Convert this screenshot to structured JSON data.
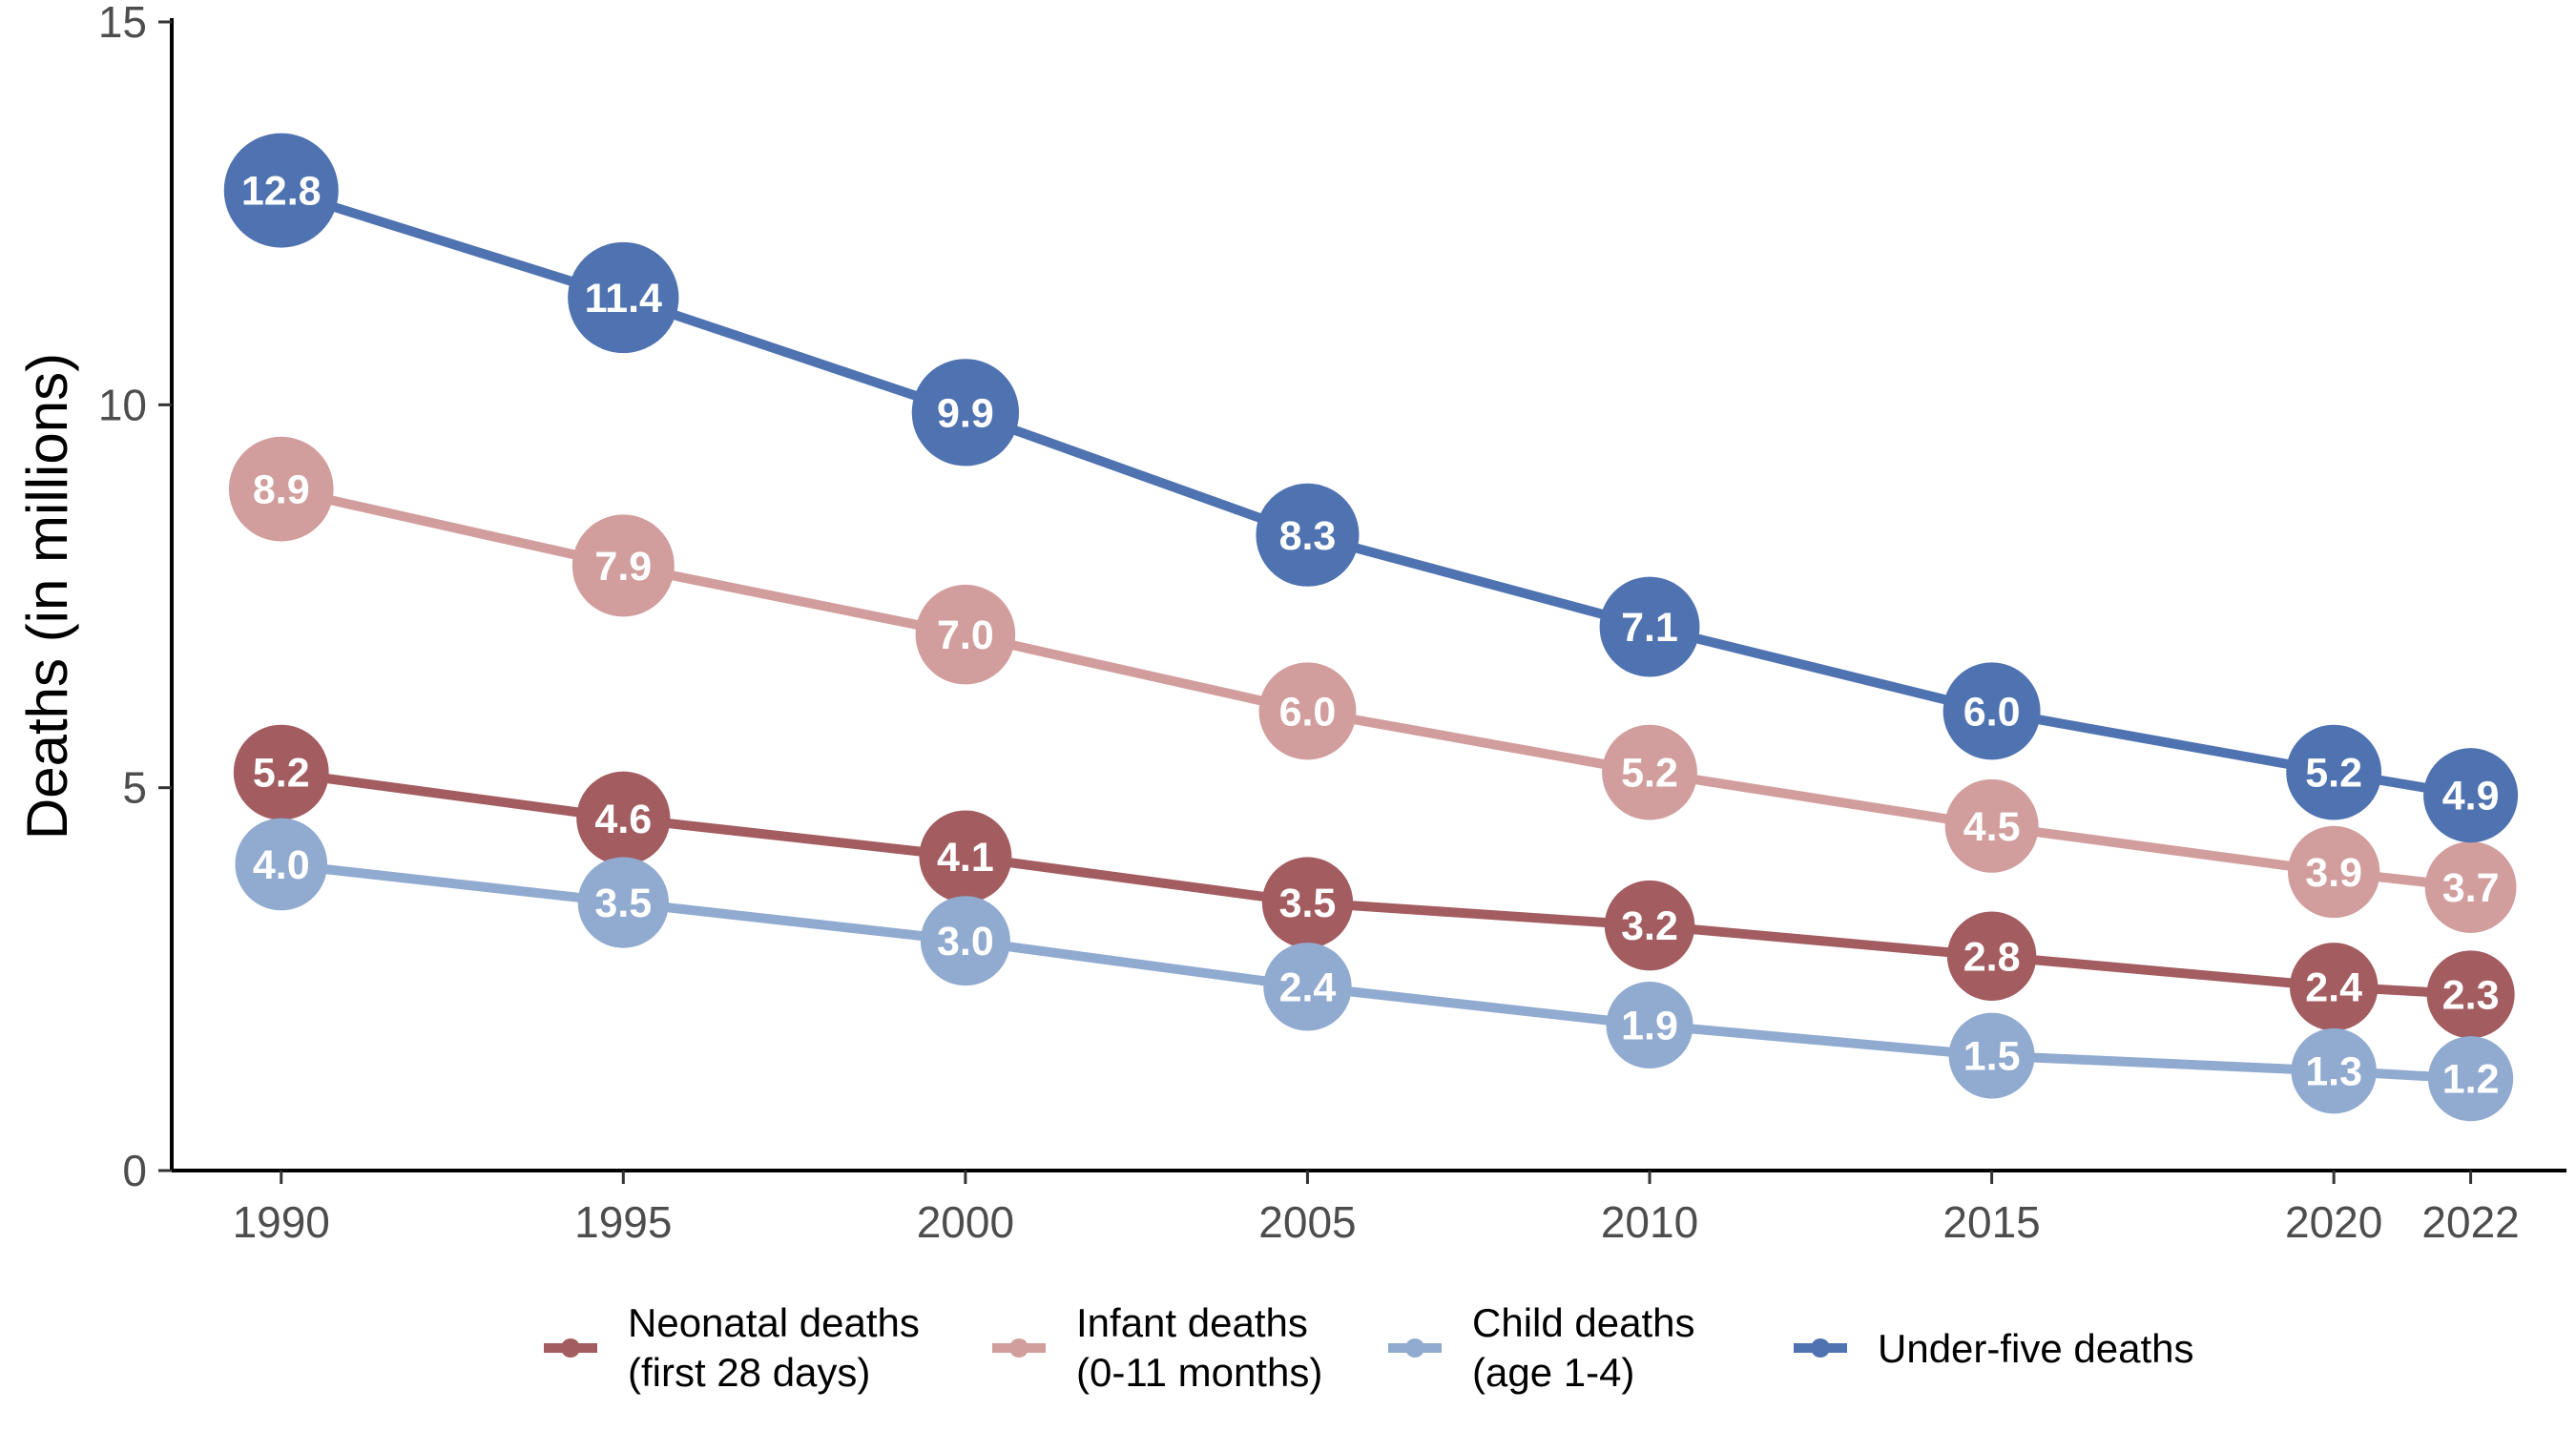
{
  "chart_data": {
    "type": "line",
    "title": "",
    "xlabel": "",
    "ylabel": "Deaths (in millions)",
    "x": [
      1990,
      1995,
      2000,
      2005,
      2010,
      2015,
      2020,
      2022
    ],
    "x_tick_labels": [
      "1990",
      "1995",
      "2000",
      "2005",
      "2010",
      "2015",
      "2020",
      "2022"
    ],
    "ylim": [
      0,
      15
    ],
    "y_ticks": [
      0,
      5,
      10,
      15
    ],
    "y_tick_labels": [
      "0",
      "5",
      "10",
      "15"
    ],
    "grid": false,
    "legend_position": "bottom",
    "series": [
      {
        "key": "neonatal",
        "name": "Neonatal deaths",
        "name_line2": "(first 28 days)",
        "color": "#a35c5f",
        "values": [
          5.2,
          4.6,
          4.1,
          3.5,
          3.2,
          2.8,
          2.4,
          2.3
        ],
        "labels": [
          "5.2",
          "4.6",
          "4.1",
          "3.5",
          "3.2",
          "2.8",
          "2.4",
          "2.3"
        ]
      },
      {
        "key": "infant",
        "name": "Infant deaths",
        "name_line2": "(0-11 months)",
        "color": "#d19e9d",
        "values": [
          8.9,
          7.9,
          7.0,
          6.0,
          5.2,
          4.5,
          3.9,
          3.7
        ],
        "labels": [
          "8.9",
          "7.9",
          "7.0",
          "6.0",
          "5.2",
          "4.5",
          "3.9",
          "3.7"
        ]
      },
      {
        "key": "child",
        "name": "Child deaths",
        "name_line2": "(age 1-4)",
        "color": "#91aad0",
        "values": [
          4.0,
          3.5,
          3.0,
          2.4,
          1.9,
          1.5,
          1.3,
          1.2
        ],
        "labels": [
          "4.0",
          "3.5",
          "3.0",
          "2.4",
          "1.9",
          "1.5",
          "1.3",
          "1.2"
        ]
      },
      {
        "key": "under5",
        "name": "Under-five deaths",
        "name_line2": "",
        "color": "#4f72b0",
        "values": [
          12.8,
          11.4,
          9.9,
          8.3,
          7.1,
          6.0,
          5.2,
          4.9
        ],
        "labels": [
          "12.8",
          "11.4",
          "9.9",
          "8.3",
          "7.1",
          "6.0",
          "5.2",
          "4.9"
        ]
      }
    ]
  }
}
